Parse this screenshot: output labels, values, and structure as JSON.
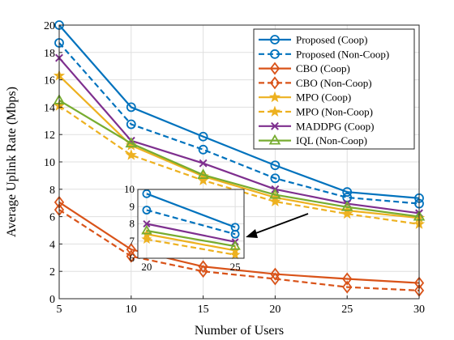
{
  "chart_data": {
    "type": "line",
    "xlabel": "Number of Users",
    "ylabel": "Average Uplink Rate (Mbps)",
    "x": [
      5,
      10,
      15,
      20,
      25,
      30
    ],
    "xlim": [
      5,
      30
    ],
    "ylim": [
      0,
      20
    ],
    "xticks": [
      5,
      10,
      15,
      20,
      25,
      30
    ],
    "yticks": [
      0,
      2,
      4,
      6,
      8,
      10,
      12,
      14,
      16,
      18,
      20
    ],
    "grid": true,
    "legend_position": "top-right",
    "series": [
      {
        "name": "Proposed (Coop)",
        "color": "#0072BD",
        "dash": "solid",
        "marker": "circle",
        "values": [
          20.0,
          14.0,
          11.85,
          9.75,
          7.8,
          7.35
        ]
      },
      {
        "name": "Proposed (Non-Coop)",
        "color": "#0072BD",
        "dash": "dashed",
        "marker": "circle",
        "values": [
          18.7,
          12.75,
          10.9,
          8.8,
          7.4,
          6.95
        ]
      },
      {
        "name": "CBO (Coop)",
        "color": "#D95319",
        "dash": "solid",
        "marker": "diamond",
        "values": [
          7.05,
          3.6,
          2.35,
          1.8,
          1.45,
          1.15
        ]
      },
      {
        "name": "CBO (Non-Coop)",
        "color": "#D95319",
        "dash": "dashed",
        "marker": "diamond",
        "values": [
          6.5,
          3.1,
          2.0,
          1.45,
          0.85,
          0.6
        ]
      },
      {
        "name": "MPO (Coop)",
        "color": "#EDB120",
        "dash": "solid",
        "marker": "star",
        "values": [
          16.3,
          11.2,
          8.95,
          7.4,
          6.45,
          5.9
        ]
      },
      {
        "name": "MPO (Non-Coop)",
        "color": "#EDB120",
        "dash": "dashed",
        "marker": "star",
        "values": [
          14.1,
          10.5,
          8.65,
          7.1,
          6.2,
          5.45
        ]
      },
      {
        "name": "MADDPG (Coop)",
        "color": "#7E2F8E",
        "dash": "solid",
        "marker": "x",
        "values": [
          17.6,
          11.55,
          9.9,
          8.0,
          6.95,
          6.25
        ]
      },
      {
        "name": "IQL (Non-Coop)",
        "color": "#77AC30",
        "dash": "solid",
        "marker": "triangle",
        "values": [
          14.5,
          11.35,
          9.05,
          7.6,
          6.7,
          6.0
        ]
      }
    ],
    "inset": {
      "xlim": [
        19.5,
        25.5
      ],
      "ylim": [
        6,
        10
      ],
      "xticks": [
        20,
        25
      ],
      "yticks": [
        6,
        7,
        8,
        9,
        10
      ],
      "series_values": [
        [
          9.75,
          7.8
        ],
        [
          8.8,
          7.4
        ],
        [
          7.4,
          6.45
        ],
        [
          7.1,
          6.2
        ],
        [
          8.0,
          6.95
        ],
        [
          7.6,
          6.7
        ]
      ],
      "series_index": [
        0,
        1,
        4,
        5,
        6,
        7
      ]
    }
  }
}
